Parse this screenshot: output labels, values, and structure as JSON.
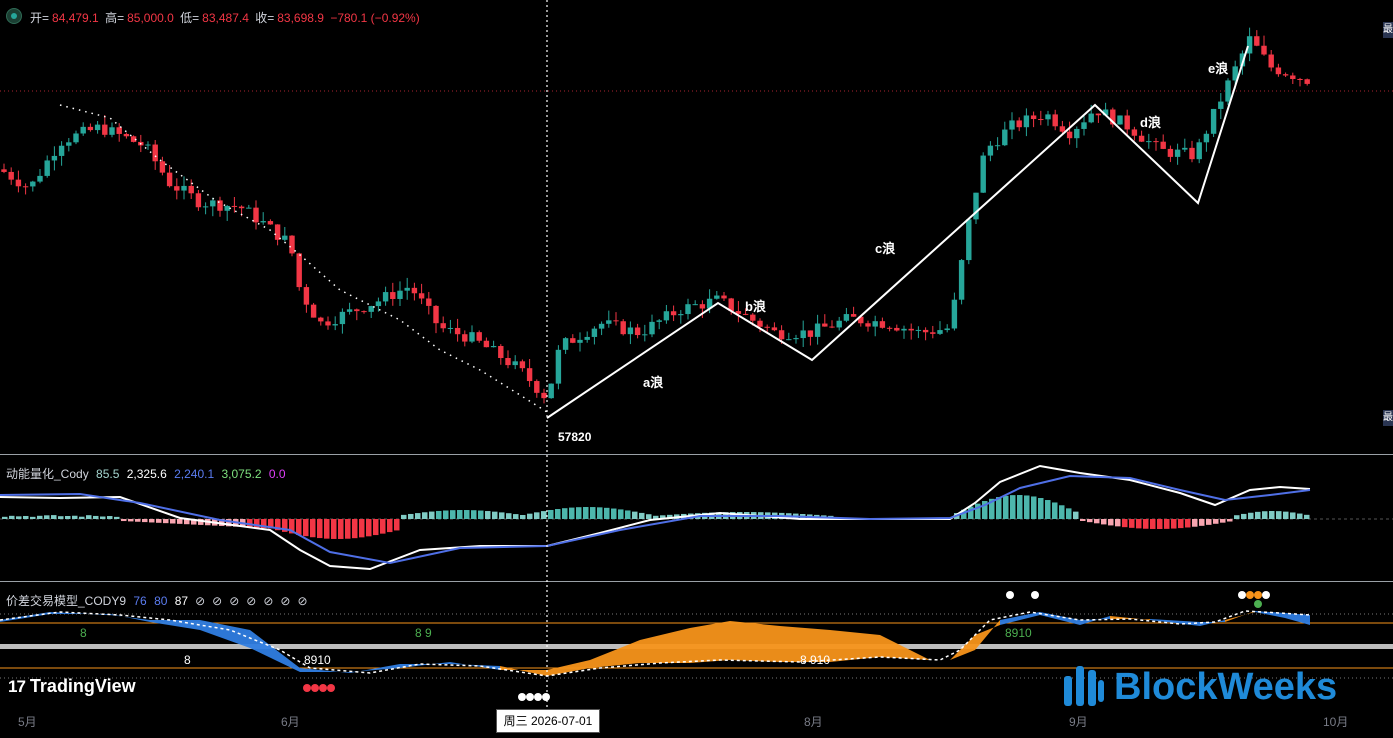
{
  "header": {
    "open_label": "开=",
    "open_value": "84,479.1",
    "high_label": "高=",
    "high_value": "85,000.0",
    "low_label": "低=",
    "low_value": "83,487.4",
    "close_label": "收=",
    "close_value": "83,698.9",
    "change": "−780.1 (−0.92%)"
  },
  "wave_labels": [
    "a浪",
    "b浪",
    "c浪",
    "d浪",
    "e浪"
  ],
  "low_marker": "57820",
  "price_tags": [
    "最",
    "最"
  ],
  "indicator1": {
    "name": "动能量化_Cody",
    "values": [
      {
        "text": "85.5",
        "color": "#a5d6d0"
      },
      {
        "text": "2,325.6",
        "color": "#ffffff"
      },
      {
        "text": "2,240.1",
        "color": "#5b7cf0"
      },
      {
        "text": "3,075.2",
        "color": "#7ee07e"
      },
      {
        "text": "0.0",
        "color": "#e040fb"
      }
    ]
  },
  "indicator2": {
    "name": "价差交易模型_CODY9",
    "values": [
      {
        "text": "76",
        "color": "#5b7cf0"
      },
      {
        "text": "80",
        "color": "#5b7cf0"
      },
      {
        "text": "87",
        "color": "#ffffff"
      }
    ],
    "empty_glyphs": [
      "⊘",
      "⊘",
      "⊘",
      "⊘",
      "⊘",
      "⊘",
      "⊘"
    ],
    "count_labels": [
      {
        "text": "8",
        "color": "#4caf50"
      },
      {
        "text": "8",
        "color": "#ffffff"
      },
      {
        "text": "8910",
        "color": "#ffffff"
      },
      {
        "text": "8 9",
        "color": "#4caf50"
      },
      {
        "text": "8 910",
        "color": "#ffffff"
      },
      {
        "text": "8910",
        "color": "#4caf50"
      }
    ]
  },
  "time_axis": [
    "5月",
    "6月",
    "8月",
    "9月",
    "10月"
  ],
  "crosshair_date": "周三 2026-07-01",
  "branding": {
    "tradingview": "TradingView",
    "blockweeks": "BlockWeeks"
  },
  "colors": {
    "up": "#26a69a",
    "down": "#f23645",
    "wave": "#ffffff",
    "orange": "#f7931a",
    "blue": "#2f7de1"
  },
  "chart_data": {
    "type": "candlestick",
    "panes": [
      "price",
      "momentum",
      "spread-model"
    ],
    "last_bar": {
      "open": 84479.1,
      "high": 85000.0,
      "low": 83487.4,
      "close": 83698.9,
      "change": -780.1,
      "change_pct": -0.92
    },
    "marked_low": 57820,
    "wave_annotations": [
      "a浪",
      "b浪",
      "c浪",
      "d浪",
      "e浪"
    ],
    "x_tick_labels": [
      "5月",
      "6月",
      "8月",
      "9月",
      "10月"
    ],
    "momentum_values": [
      85.5,
      2325.6,
      2240.1,
      3075.2,
      0.0
    ],
    "spread_model_values": [
      76,
      80,
      87
    ]
  }
}
